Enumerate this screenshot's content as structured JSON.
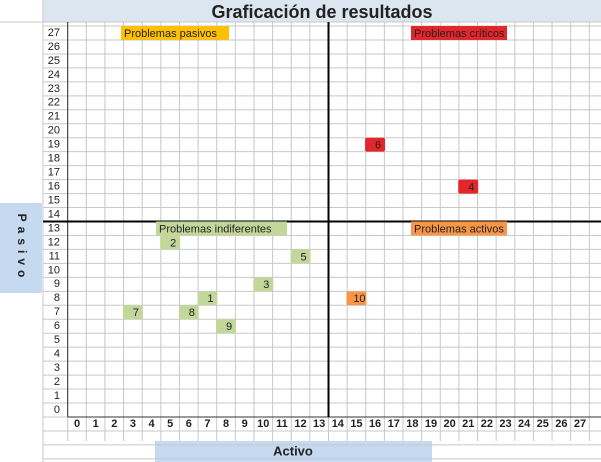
{
  "chart_data": {
    "type": "scatter",
    "title": "Graficación de resultados",
    "x_label": "Activo",
    "y_label": "Pasivo",
    "xlim": [
      0,
      27
    ],
    "ylim": [
      0,
      27
    ],
    "xticks": [
      0,
      1,
      2,
      3,
      4,
      5,
      6,
      7,
      8,
      9,
      10,
      11,
      12,
      13,
      14,
      15,
      16,
      17,
      18,
      19,
      20,
      21,
      22,
      23,
      24,
      25,
      26,
      27
    ],
    "yticks": [
      0,
      1,
      2,
      3,
      4,
      5,
      6,
      7,
      8,
      9,
      10,
      11,
      12,
      13,
      14,
      15,
      16,
      17,
      18,
      19,
      20,
      21,
      22,
      23,
      24,
      25,
      26,
      27
    ],
    "x_divider": 13.5,
    "y_divider": 13.5,
    "series": [
      {
        "name": "Problemas pasivos",
        "color": "#ffc000",
        "x": [],
        "values": [],
        "labels": []
      },
      {
        "name": "Problemas críticos",
        "color": "#e3262b",
        "x": [
          16,
          21
        ],
        "values": [
          19,
          16
        ],
        "labels": [
          "6",
          "4"
        ]
      },
      {
        "name": "Problemas indiferentes",
        "color": "#c4d79b",
        "x": [
          5,
          12,
          10,
          7,
          3,
          6,
          8
        ],
        "values": [
          12,
          11,
          9,
          8,
          7,
          7,
          6
        ],
        "labels": [
          "2",
          "5",
          "3",
          "1",
          "7",
          "8",
          "9"
        ]
      },
      {
        "name": "Problemas activos",
        "color": "#f79646",
        "x": [
          15
        ],
        "values": [
          8
        ],
        "labels": [
          "10"
        ]
      }
    ]
  }
}
